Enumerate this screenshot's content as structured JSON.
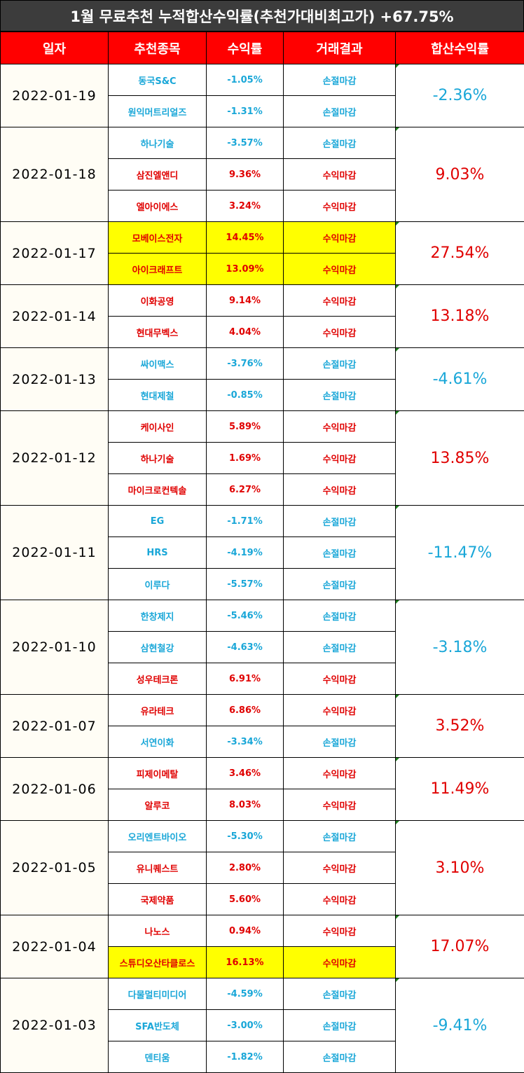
{
  "title": "1월 무료추천 누적합산수익률(추천가대비최고가) +67.75%",
  "headers": [
    "일자",
    "추천종목",
    "수익률",
    "거래결과",
    "합산수익률"
  ],
  "colors": {
    "gain": "#e00000",
    "loss": "#1aa7d8",
    "highlight": "#ffff00",
    "header_bg": "#ff0000",
    "title_bg": "#3c3c3c"
  },
  "groups": [
    {
      "date": "2022-01-19",
      "total": "-2.36%",
      "total_dir": "down",
      "rows": [
        {
          "stock": "동국S&C",
          "rate": "-1.05%",
          "result": "손절마감",
          "dir": "down",
          "highlight": false
        },
        {
          "stock": "원익머트리얼즈",
          "rate": "-1.31%",
          "result": "손절마감",
          "dir": "down",
          "highlight": false
        }
      ]
    },
    {
      "date": "2022-01-18",
      "total": "9.03%",
      "total_dir": "up",
      "rows": [
        {
          "stock": "하나기술",
          "rate": "-3.57%",
          "result": "손절마감",
          "dir": "down",
          "highlight": false
        },
        {
          "stock": "삼진엘앤디",
          "rate": "9.36%",
          "result": "수익마감",
          "dir": "up",
          "highlight": false
        },
        {
          "stock": "엘아이에스",
          "rate": "3.24%",
          "result": "수익마감",
          "dir": "up",
          "highlight": false
        }
      ]
    },
    {
      "date": "2022-01-17",
      "total": "27.54%",
      "total_dir": "up",
      "rows": [
        {
          "stock": "모베이스전자",
          "rate": "14.45%",
          "result": "수익마감",
          "dir": "up",
          "highlight": true
        },
        {
          "stock": "아이크래프트",
          "rate": "13.09%",
          "result": "수익마감",
          "dir": "up",
          "highlight": true
        }
      ]
    },
    {
      "date": "2022-01-14",
      "total": "13.18%",
      "total_dir": "up",
      "rows": [
        {
          "stock": "이화공영",
          "rate": "9.14%",
          "result": "수익마감",
          "dir": "up",
          "highlight": false
        },
        {
          "stock": "현대무벡스",
          "rate": "4.04%",
          "result": "수익마감",
          "dir": "up",
          "highlight": false
        }
      ]
    },
    {
      "date": "2022-01-13",
      "total": "-4.61%",
      "total_dir": "down",
      "rows": [
        {
          "stock": "싸이맥스",
          "rate": "-3.76%",
          "result": "손절마감",
          "dir": "down",
          "highlight": false
        },
        {
          "stock": "현대제철",
          "rate": "-0.85%",
          "result": "손절마감",
          "dir": "down",
          "highlight": false
        }
      ]
    },
    {
      "date": "2022-01-12",
      "total": "13.85%",
      "total_dir": "up",
      "rows": [
        {
          "stock": "케이사인",
          "rate": "5.89%",
          "result": "수익마감",
          "dir": "up",
          "highlight": false
        },
        {
          "stock": "하나기술",
          "rate": "1.69%",
          "result": "수익마감",
          "dir": "up",
          "highlight": false
        },
        {
          "stock": "마이크로컨텍솔",
          "rate": "6.27%",
          "result": "수익마감",
          "dir": "up",
          "highlight": false
        }
      ]
    },
    {
      "date": "2022-01-11",
      "total": "-11.47%",
      "total_dir": "down",
      "rows": [
        {
          "stock": "EG",
          "rate": "-1.71%",
          "result": "손절마감",
          "dir": "down",
          "highlight": false
        },
        {
          "stock": "HRS",
          "rate": "-4.19%",
          "result": "손절마감",
          "dir": "down",
          "highlight": false
        },
        {
          "stock": "이루다",
          "rate": "-5.57%",
          "result": "손절마감",
          "dir": "down",
          "highlight": false
        }
      ]
    },
    {
      "date": "2022-01-10",
      "total": "-3.18%",
      "total_dir": "down",
      "rows": [
        {
          "stock": "한창제지",
          "rate": "-5.46%",
          "result": "손절마감",
          "dir": "down",
          "highlight": false
        },
        {
          "stock": "삼현철강",
          "rate": "-4.63%",
          "result": "손절마감",
          "dir": "down",
          "highlight": false
        },
        {
          "stock": "성우테크론",
          "rate": "6.91%",
          "result": "수익마감",
          "dir": "up",
          "highlight": false
        }
      ]
    },
    {
      "date": "2022-01-07",
      "total": "3.52%",
      "total_dir": "up",
      "rows": [
        {
          "stock": "유라테크",
          "rate": "6.86%",
          "result": "수익마감",
          "dir": "up",
          "highlight": false
        },
        {
          "stock": "서연이화",
          "rate": "-3.34%",
          "result": "손절마감",
          "dir": "down",
          "highlight": false
        }
      ]
    },
    {
      "date": "2022-01-06",
      "total": "11.49%",
      "total_dir": "up",
      "rows": [
        {
          "stock": "피제이메탈",
          "rate": "3.46%",
          "result": "수익마감",
          "dir": "up",
          "highlight": false
        },
        {
          "stock": "알루코",
          "rate": "8.03%",
          "result": "수익마감",
          "dir": "up",
          "highlight": false
        }
      ]
    },
    {
      "date": "2022-01-05",
      "total": "3.10%",
      "total_dir": "up",
      "rows": [
        {
          "stock": "오리엔트바이오",
          "rate": "-5.30%",
          "result": "손절마감",
          "dir": "down",
          "highlight": false
        },
        {
          "stock": "유니퀘스트",
          "rate": "2.80%",
          "result": "수익마감",
          "dir": "up",
          "highlight": false
        },
        {
          "stock": "국제약품",
          "rate": "5.60%",
          "result": "수익마감",
          "dir": "up",
          "highlight": false
        }
      ]
    },
    {
      "date": "2022-01-04",
      "total": "17.07%",
      "total_dir": "up",
      "rows": [
        {
          "stock": "나노스",
          "rate": "0.94%",
          "result": "수익마감",
          "dir": "up",
          "highlight": false
        },
        {
          "stock": "스튜디오산타클로스",
          "rate": "16.13%",
          "result": "수익마감",
          "dir": "up",
          "highlight": true
        }
      ]
    },
    {
      "date": "2022-01-03",
      "total": "-9.41%",
      "total_dir": "down",
      "rows": [
        {
          "stock": "다물멀티미디어",
          "rate": "-4.59%",
          "result": "손절마감",
          "dir": "down",
          "highlight": false
        },
        {
          "stock": "SFA반도체",
          "rate": "-3.00%",
          "result": "손절마감",
          "dir": "down",
          "highlight": false
        },
        {
          "stock": "덴티움",
          "rate": "-1.82%",
          "result": "손절마감",
          "dir": "down",
          "highlight": false
        }
      ]
    }
  ]
}
